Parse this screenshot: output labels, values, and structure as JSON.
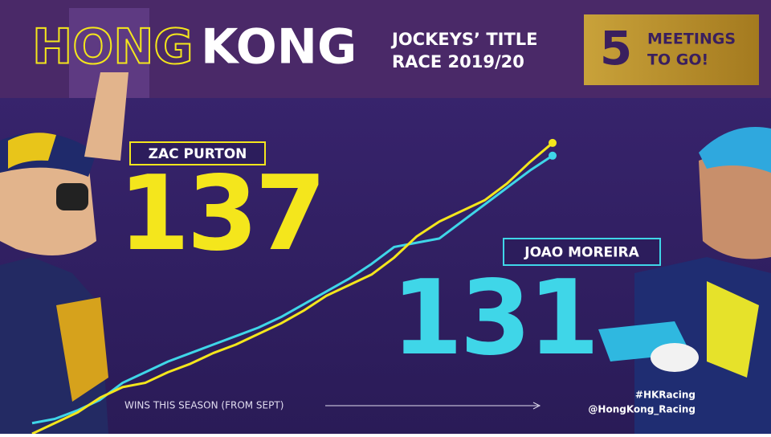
{
  "header": {
    "title_outline": "HONG",
    "title_solid": "KONG",
    "subtitle_lines": [
      "JOCKEYS’ TITLE",
      "RACE 2019/20"
    ]
  },
  "countdown": {
    "number": 5,
    "lines": [
      "MEETINGS",
      "TO GO!"
    ]
  },
  "social": [
    "#HKRacing",
    "@HongKong_Racing"
  ],
  "chart_data": {
    "type": "line",
    "xlabel": "WINS THIS SEASON (FROM SEPT)",
    "ylim": [
      0,
      140
    ],
    "series": [
      {
        "name": "ZAC PURTON",
        "color": "#f4e61c",
        "values": [
          0,
          5,
          10,
          17,
          22,
          24,
          29,
          33,
          38,
          42,
          47,
          52,
          58,
          65,
          70,
          75,
          83,
          93,
          100,
          105,
          110,
          118,
          128,
          137
        ]
      },
      {
        "name": "JOAO MOREIRA",
        "color": "#3fd6e8",
        "values": [
          5,
          7,
          11,
          16,
          24,
          29,
          34,
          38,
          42,
          46,
          50,
          55,
          61,
          67,
          73,
          80,
          88,
          90,
          92,
          100,
          108,
          116,
          124,
          131
        ]
      }
    ]
  }
}
